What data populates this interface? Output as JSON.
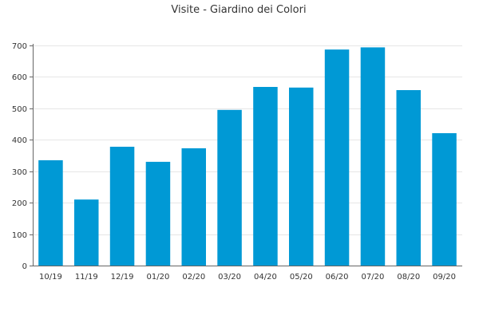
{
  "chart_data": {
    "type": "bar",
    "title": "Visite - Giardino dei Colori",
    "xlabel": "",
    "ylabel": "",
    "categories": [
      "10/19",
      "11/19",
      "12/19",
      "01/20",
      "02/20",
      "03/20",
      "04/20",
      "05/20",
      "06/20",
      "07/20",
      "08/20",
      "09/20"
    ],
    "values": [
      335,
      210,
      378,
      330,
      373,
      495,
      568,
      566,
      687,
      694,
      558,
      421
    ],
    "ylim": [
      0,
      700
    ],
    "yticks": [
      0,
      100,
      200,
      300,
      400,
      500,
      600,
      700
    ],
    "grid": true,
    "legend": "none",
    "bar_color": "#0099d5"
  }
}
